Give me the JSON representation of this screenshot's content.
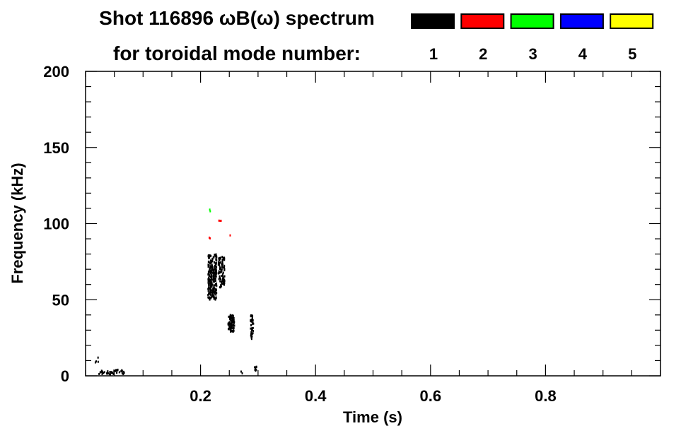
{
  "chart_data": {
    "type": "scatter",
    "title_line1": "Shot 116896 ωB(ω) spectrum",
    "title_line2": "for toroidal mode number:",
    "xlabel": "Time (s)",
    "ylabel": "Frequency (kHz)",
    "xlim": [
      0,
      1.0
    ],
    "ylim": [
      0,
      200
    ],
    "xticks": [
      0.2,
      0.4,
      0.6,
      0.8
    ],
    "xtick_labels": [
      "0.2",
      "0.4",
      "0.6",
      "0.8"
    ],
    "xminor_step": 0.05,
    "yticks": [
      0,
      50,
      100,
      150,
      200
    ],
    "ytick_labels": [
      "0",
      "50",
      "100",
      "150",
      "200"
    ],
    "yminor_step": 10,
    "grid": false,
    "legend_position": "top-right",
    "legend": [
      {
        "label": "1",
        "color": "#000000"
      },
      {
        "label": "2",
        "color": "#ff0000"
      },
      {
        "label": "3",
        "color": "#00ff00"
      },
      {
        "label": "4",
        "color": "#0000ff"
      },
      {
        "label": "5",
        "color": "#ffff00"
      }
    ],
    "clusters": [
      {
        "mode": 1,
        "t": [
          0.213,
          0.228
        ],
        "f": [
          50,
          80
        ],
        "density": 260
      },
      {
        "mode": 1,
        "t": [
          0.231,
          0.242
        ],
        "f": [
          58,
          79
        ],
        "density": 90
      },
      {
        "mode": 1,
        "t": [
          0.248,
          0.259
        ],
        "f": [
          29,
          40
        ],
        "density": 80
      },
      {
        "mode": 1,
        "t": [
          0.287,
          0.292
        ],
        "f": [
          24,
          40
        ],
        "density": 40
      },
      {
        "mode": 1,
        "t": [
          0.017,
          0.069
        ],
        "f": [
          1,
          4
        ],
        "density": 40
      },
      {
        "mode": 1,
        "t": [
          0.017,
          0.022
        ],
        "f": [
          8,
          12
        ],
        "density": 4
      },
      {
        "mode": 1,
        "t": [
          0.293,
          0.299
        ],
        "f": [
          2,
          6
        ],
        "density": 8
      },
      {
        "mode": 1,
        "t": [
          0.27,
          0.273
        ],
        "f": [
          1,
          3
        ],
        "density": 2
      },
      {
        "mode": 2,
        "t": [
          0.232,
          0.236
        ],
        "f": [
          100,
          102
        ],
        "density": 3
      },
      {
        "mode": 2,
        "t": [
          0.215,
          0.218
        ],
        "f": [
          89,
          91
        ],
        "density": 2
      },
      {
        "mode": 2,
        "t": [
          0.25,
          0.252
        ],
        "f": [
          91,
          93
        ],
        "density": 1
      },
      {
        "mode": 3,
        "t": [
          0.216,
          0.218
        ],
        "f": [
          108,
          111
        ],
        "density": 2
      }
    ]
  }
}
